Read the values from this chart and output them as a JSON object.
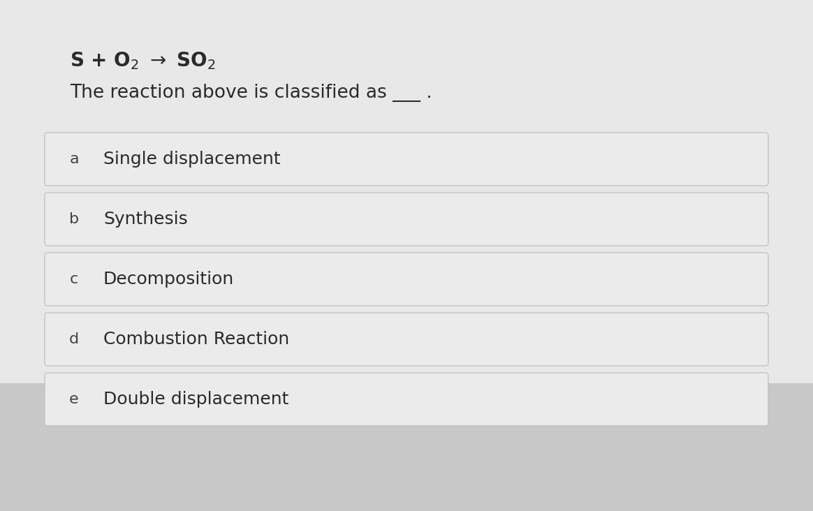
{
  "background_color": "#c8c8c8",
  "top_background": "#dcdcdc",
  "equation_fontsize": 20,
  "question_fontsize": 19,
  "option_fontsize": 18,
  "letter_fontsize": 16,
  "text_color": "#2a2a2a",
  "letter_color": "#444444",
  "option_box_color": "#ebebeb",
  "option_box_edge_color": "#bbbbbb",
  "options": [
    {
      "letter": "a",
      "text": "Single displacement"
    },
    {
      "letter": "b",
      "text": "Synthesis"
    },
    {
      "letter": "c",
      "text": "Decomposition"
    },
    {
      "letter": "d",
      "text": "Combustion Reaction"
    },
    {
      "letter": "e",
      "text": "Double displacement"
    }
  ]
}
